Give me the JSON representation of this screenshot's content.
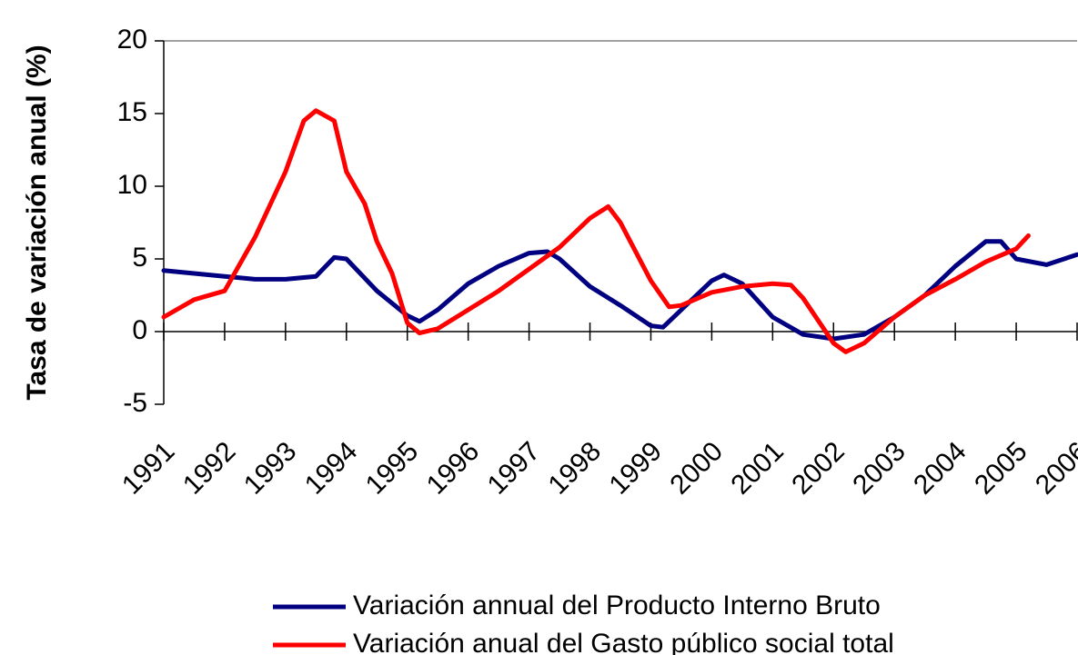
{
  "chart_data": {
    "type": "line",
    "y_label": "Tasa de variación anual (%)",
    "xlim": [
      1991,
      2006
    ],
    "xticks": [
      1991,
      1992,
      1993,
      1994,
      1995,
      1996,
      1997,
      1998,
      1999,
      2000,
      2001,
      2002,
      2003,
      2004,
      2005,
      2006
    ],
    "ylim": [
      -5,
      20
    ],
    "yticks": [
      -5,
      0,
      5,
      10,
      15,
      20
    ],
    "series": [
      {
        "name": "Variación annual del Producto Interno Bruto",
        "color": "#000080",
        "x": [
          1991,
          1991.5,
          1992,
          1992.5,
          1993,
          1993.5,
          1993.8,
          1994,
          1994.5,
          1995,
          1995.2,
          1995.5,
          1996,
          1996.5,
          1997,
          1997.3,
          1997.5,
          1998,
          1998.5,
          1999,
          1999.2,
          1999.5,
          2000,
          2000.2,
          2000.5,
          2001,
          2001.5,
          2002,
          2002.5,
          2003,
          2003.5,
          2004,
          2004.5,
          2004.75,
          2005,
          2005.5,
          2006
        ],
        "values": [
          4.2,
          4.0,
          3.8,
          3.6,
          3.6,
          3.8,
          5.1,
          5.0,
          2.8,
          1.1,
          0.7,
          1.5,
          3.3,
          4.5,
          5.4,
          5.5,
          5.0,
          3.1,
          1.8,
          0.4,
          0.3,
          1.5,
          3.5,
          3.9,
          3.3,
          1.0,
          -0.2,
          -0.5,
          -0.2,
          1.0,
          2.5,
          4.5,
          6.2,
          6.2,
          5.0,
          4.6,
          5.3
        ]
      },
      {
        "name": "Variación anual del Gasto público social total",
        "color": "#ff0000",
        "x": [
          1991,
          1991.5,
          1992,
          1992.5,
          1993,
          1993.3,
          1993.5,
          1993.8,
          1994,
          1994.3,
          1994.5,
          1994.75,
          1995,
          1995.2,
          1995.5,
          1996,
          1996.5,
          1997,
          1997.5,
          1998,
          1998.3,
          1998.5,
          1999,
          1999.3,
          1999.5,
          2000,
          2000.5,
          2001,
          2001.3,
          2001.5,
          2002,
          2002.2,
          2002.5,
          2003,
          2003.5,
          2004,
          2004.5,
          2005,
          2005.2
        ],
        "values": [
          1.0,
          2.2,
          2.8,
          6.5,
          11,
          14.5,
          15.2,
          14.5,
          11,
          8.8,
          6.2,
          4,
          0.6,
          -0.1,
          0.2,
          1.5,
          2.8,
          4.3,
          5.8,
          7.8,
          8.6,
          7.5,
          3.5,
          1.7,
          1.8,
          2.7,
          3.1,
          3.3,
          3.2,
          2.3,
          -0.8,
          -1.4,
          -0.8,
          1.0,
          2.5,
          3.6,
          4.8,
          5.7,
          6.6
        ]
      }
    ]
  }
}
